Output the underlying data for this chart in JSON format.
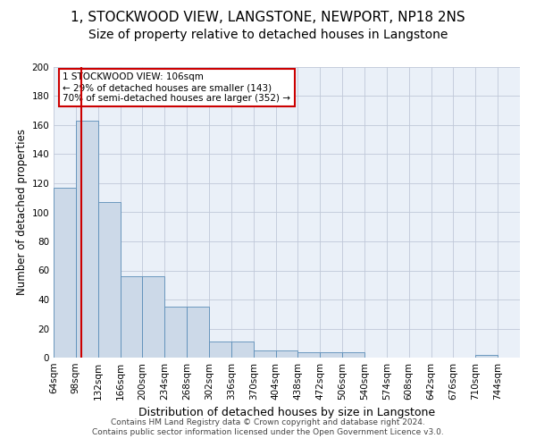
{
  "title": "1, STOCKWOOD VIEW, LANGSTONE, NEWPORT, NP18 2NS",
  "subtitle": "Size of property relative to detached houses in Langstone",
  "xlabel": "Distribution of detached houses by size in Langstone",
  "ylabel": "Number of detached properties",
  "footer_line1": "Contains HM Land Registry data © Crown copyright and database right 2024.",
  "footer_line2": "Contains public sector information licensed under the Open Government Licence v3.0.",
  "bin_labels": [
    "64sqm",
    "98sqm",
    "132sqm",
    "166sqm",
    "200sqm",
    "234sqm",
    "268sqm",
    "302sqm",
    "336sqm",
    "370sqm",
    "404sqm",
    "438sqm",
    "472sqm",
    "506sqm",
    "540sqm",
    "574sqm",
    "608sqm",
    "642sqm",
    "676sqm",
    "710sqm",
    "744sqm"
  ],
  "bar_values": [
    117,
    163,
    107,
    56,
    56,
    35,
    35,
    11,
    11,
    5,
    5,
    4,
    4,
    4,
    0,
    0,
    0,
    0,
    0,
    2,
    0
  ],
  "bar_color": "#ccd9e8",
  "bar_edgecolor": "#5b8db8",
  "grid_color": "#c0c8d8",
  "background_color": "#eaf0f8",
  "property_line_color": "#cc0000",
  "annotation_text": "1 STOCKWOOD VIEW: 106sqm\n← 29% of detached houses are smaller (143)\n70% of semi-detached houses are larger (352) →",
  "annotation_box_color": "#ffffff",
  "annotation_box_edgecolor": "#cc0000",
  "ylim": [
    0,
    200
  ],
  "yticks": [
    0,
    20,
    40,
    60,
    80,
    100,
    120,
    140,
    160,
    180,
    200
  ],
  "title_fontsize": 11,
  "subtitle_fontsize": 10,
  "ylabel_fontsize": 8.5,
  "xlabel_fontsize": 9,
  "tick_fontsize": 7.5,
  "annotation_fontsize": 7.5,
  "footer_fontsize": 6.5
}
